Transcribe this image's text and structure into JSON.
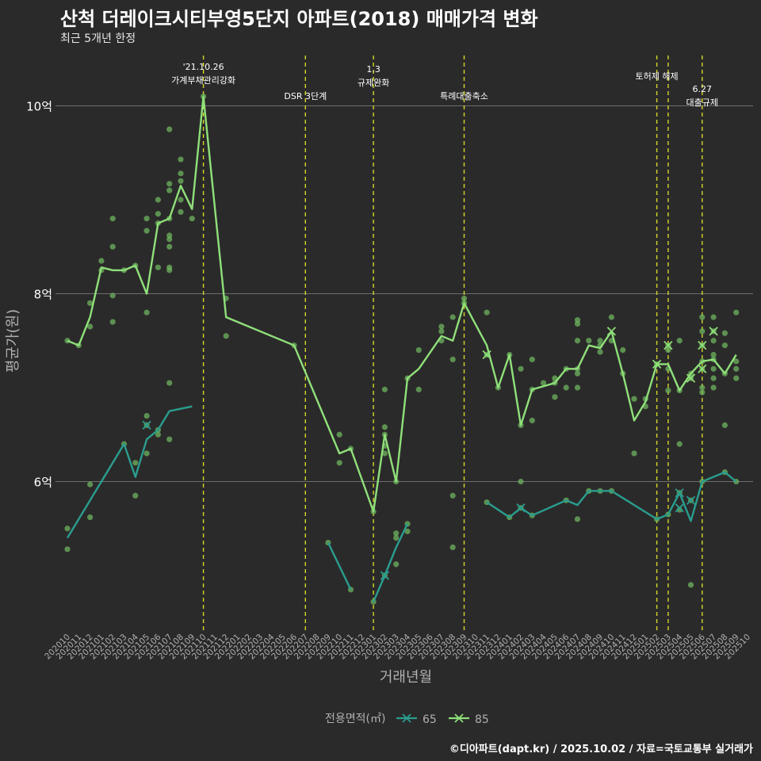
{
  "title": "산척 더레이크시티부영5단지 아파트(2018) 매매가격 변화",
  "subtitle": "최근 5개년 한정",
  "caption": "©디아파트(dapt.kr) / 2025.10.02 / 자료=국토교통부 실거래가",
  "colors": {
    "background": "#2b2a2a",
    "grid": "#6e6e6e",
    "series_65": "#2a9d8f",
    "series_85": "#8fe07a",
    "points": "#6db45f",
    "vline": "#d4d62a",
    "axis_text": "#b0b0b0"
  },
  "chart_data": {
    "type": "line",
    "xlabel": "거래년월",
    "ylabel": "평균가(원)",
    "ylim": [
      4.5,
      10.6
    ],
    "yticks": [
      {
        "v": 6,
        "label": "6억"
      },
      {
        "v": 8,
        "label": "8억"
      },
      {
        "v": 10,
        "label": "10억"
      }
    ],
    "x_labels": [
      "202010",
      "202011",
      "202012",
      "202101",
      "202102",
      "202103",
      "202104",
      "202105",
      "202106",
      "202107",
      "202108",
      "202109",
      "202110",
      "202111",
      "202112",
      "202201",
      "202202",
      "202203",
      "202204",
      "202205",
      "202206",
      "202207",
      "202208",
      "202209",
      "202210",
      "202211",
      "202212",
      "202301",
      "202302",
      "202303",
      "202304",
      "202305",
      "202306",
      "202307",
      "202308",
      "202309",
      "202310",
      "202311",
      "202312",
      "202401",
      "202402",
      "202403",
      "202404",
      "202405",
      "202406",
      "202407",
      "202408",
      "202409",
      "202410",
      "202411",
      "202412",
      "202501",
      "202502",
      "202503",
      "202504",
      "202505",
      "202506",
      "202507",
      "202508",
      "202509",
      "202510"
    ],
    "legend": {
      "title": "전용면적(㎡)",
      "items": [
        "65",
        "85"
      ]
    },
    "events": [
      {
        "x": 12,
        "label": "'21.10.26\n가계부채관리강화"
      },
      {
        "x": 21,
        "label": "DSR 3단계"
      },
      {
        "x": 27,
        "label": "1.3\n규제완화"
      },
      {
        "x": 35,
        "label": "특례대출축소"
      },
      {
        "x": 52,
        "label": "토허제 해제"
      },
      {
        "x": 53,
        "label": ""
      },
      {
        "x": 56,
        "label": "6.27\n대출규제"
      }
    ],
    "series": [
      {
        "name": "65",
        "segments": [
          [
            [
              0,
              5.4
            ],
            [
              5,
              6.4
            ],
            [
              6,
              6.05
            ],
            [
              7,
              6.45
            ],
            [
              8,
              6.55
            ],
            [
              9,
              6.75
            ],
            [
              11,
              6.8
            ]
          ],
          [
            [
              23,
              5.35
            ],
            [
              25,
              4.85
            ]
          ],
          [
            [
              27,
              4.72
            ],
            [
              28,
              5.0
            ],
            [
              29,
              5.3
            ],
            [
              30,
              5.55
            ]
          ],
          [
            [
              37,
              5.78
            ],
            [
              39,
              5.62
            ],
            [
              40,
              5.72
            ],
            [
              41,
              5.64
            ],
            [
              44,
              5.8
            ],
            [
              45,
              5.75
            ],
            [
              46,
              5.9
            ],
            [
              48,
              5.9
            ],
            [
              52,
              5.6
            ],
            [
              53,
              5.65
            ],
            [
              54,
              5.88
            ],
            [
              55,
              5.58
            ],
            [
              56,
              6.0
            ],
            [
              58,
              6.1
            ],
            [
              59,
              6.0
            ]
          ]
        ]
      },
      {
        "name": "85",
        "segments": [
          [
            [
              0,
              7.5
            ],
            [
              1,
              7.45
            ],
            [
              2,
              7.75
            ],
            [
              3,
              8.28
            ],
            [
              4,
              8.25
            ],
            [
              5,
              8.25
            ],
            [
              6,
              8.3
            ],
            [
              7,
              8.0
            ],
            [
              8,
              8.75
            ],
            [
              9,
              8.8
            ],
            [
              10,
              9.15
            ],
            [
              11,
              8.9
            ],
            [
              12,
              10.1
            ],
            [
              14,
              7.75
            ],
            [
              20,
              7.45
            ],
            [
              24,
              6.3
            ],
            [
              25,
              6.35
            ],
            [
              27,
              5.68
            ],
            [
              28,
              6.5
            ],
            [
              29,
              6.0
            ],
            [
              30,
              7.1
            ],
            [
              31,
              7.2
            ],
            [
              33,
              7.55
            ],
            [
              34,
              7.5
            ],
            [
              35,
              7.9
            ],
            [
              37,
              7.45
            ],
            [
              38,
              7.0
            ],
            [
              39,
              7.35
            ],
            [
              40,
              6.6
            ],
            [
              41,
              6.98
            ],
            [
              43,
              7.05
            ],
            [
              44,
              7.2
            ],
            [
              45,
              7.2
            ],
            [
              46,
              7.45
            ],
            [
              47,
              7.42
            ],
            [
              48,
              7.6
            ],
            [
              49,
              7.15
            ],
            [
              50,
              6.65
            ],
            [
              51,
              6.85
            ],
            [
              52,
              7.25
            ],
            [
              53,
              7.25
            ],
            [
              54,
              6.97
            ],
            [
              55,
              7.15
            ],
            [
              56,
              7.28
            ],
            [
              57,
              7.3
            ],
            [
              58,
              7.15
            ],
            [
              59,
              7.35
            ]
          ]
        ]
      }
    ],
    "scatter": [
      [
        0,
        5.5
      ],
      [
        0,
        5.28
      ],
      [
        2,
        5.97
      ],
      [
        2,
        5.62
      ],
      [
        5,
        6.4
      ],
      [
        6,
        6.2
      ],
      [
        6,
        5.85
      ],
      [
        7,
        6.6
      ],
      [
        7,
        6.3
      ],
      [
        8,
        6.5
      ],
      [
        8,
        6.55
      ],
      [
        9,
        7.05
      ],
      [
        9,
        6.45
      ],
      [
        23,
        5.35
      ],
      [
        25,
        4.85
      ],
      [
        27,
        4.72
      ],
      [
        28,
        5.0
      ],
      [
        29,
        5.12
      ],
      [
        29,
        5.4
      ],
      [
        29,
        5.45
      ],
      [
        30,
        5.55
      ],
      [
        30,
        5.47
      ],
      [
        34,
        5.85
      ],
      [
        34,
        5.3
      ],
      [
        37,
        5.78
      ],
      [
        39,
        5.62
      ],
      [
        40,
        5.72
      ],
      [
        41,
        5.64
      ],
      [
        44,
        5.8
      ],
      [
        45,
        5.6
      ],
      [
        46,
        5.9
      ],
      [
        47,
        5.9
      ],
      [
        48,
        5.9
      ],
      [
        52,
        5.6
      ],
      [
        53,
        5.65
      ],
      [
        54,
        5.88
      ],
      [
        54,
        5.7
      ],
      [
        55,
        5.8
      ],
      [
        55,
        4.9
      ],
      [
        56,
        6.0
      ],
      [
        58,
        6.1
      ],
      [
        59,
        6.0
      ],
      [
        0,
        7.5
      ],
      [
        1,
        7.45
      ],
      [
        2,
        7.65
      ],
      [
        2,
        7.9
      ],
      [
        3,
        8.25
      ],
      [
        3,
        8.35
      ],
      [
        4,
        8.8
      ],
      [
        4,
        8.5
      ],
      [
        4,
        7.98
      ],
      [
        4,
        7.7
      ],
      [
        5,
        8.25
      ],
      [
        6,
        8.3
      ],
      [
        7,
        8.8
      ],
      [
        7,
        8.67
      ],
      [
        7,
        7.8
      ],
      [
        7,
        6.7
      ],
      [
        8,
        9.0
      ],
      [
        8,
        8.75
      ],
      [
        8,
        8.85
      ],
      [
        8,
        8.28
      ],
      [
        9,
        8.8
      ],
      [
        9,
        9.17
      ],
      [
        9,
        9.1
      ],
      [
        9,
        8.62
      ],
      [
        9,
        8.58
      ],
      [
        9,
        8.5
      ],
      [
        9,
        8.28
      ],
      [
        9,
        8.25
      ],
      [
        9,
        9.75
      ],
      [
        10,
        9.43
      ],
      [
        10,
        9.28
      ],
      [
        10,
        9.2
      ],
      [
        10,
        9.0
      ],
      [
        10,
        8.87
      ],
      [
        11,
        8.8
      ],
      [
        12,
        10.1
      ],
      [
        14,
        7.95
      ],
      [
        14,
        7.55
      ],
      [
        20,
        7.45
      ],
      [
        24,
        6.5
      ],
      [
        24,
        6.2
      ],
      [
        25,
        6.35
      ],
      [
        27,
        5.68
      ],
      [
        28,
        6.98
      ],
      [
        28,
        6.5
      ],
      [
        28,
        6.58
      ],
      [
        28,
        6.38
      ],
      [
        28,
        6.3
      ],
      [
        29,
        6.0
      ],
      [
        30,
        7.1
      ],
      [
        31,
        6.98
      ],
      [
        31,
        7.4
      ],
      [
        33,
        7.65
      ],
      [
        33,
        7.5
      ],
      [
        33,
        7.6
      ],
      [
        34,
        7.75
      ],
      [
        34,
        7.3
      ],
      [
        35,
        7.9
      ],
      [
        35,
        7.95
      ],
      [
        37,
        7.8
      ],
      [
        37,
        7.35
      ],
      [
        38,
        7.0
      ],
      [
        39,
        7.35
      ],
      [
        40,
        6.6
      ],
      [
        40,
        7.2
      ],
      [
        40,
        6.0
      ],
      [
        41,
        6.98
      ],
      [
        41,
        6.65
      ],
      [
        41,
        7.3
      ],
      [
        42,
        7.05
      ],
      [
        43,
        7.05
      ],
      [
        43,
        6.9
      ],
      [
        43,
        7.1
      ],
      [
        44,
        7.2
      ],
      [
        44,
        7.0
      ],
      [
        45,
        7.2
      ],
      [
        45,
        7.15
      ],
      [
        45,
        7.0
      ],
      [
        45,
        7.72
      ],
      [
        45,
        7.68
      ],
      [
        45,
        7.5
      ],
      [
        46,
        7.5
      ],
      [
        47,
        7.5
      ],
      [
        47,
        7.45
      ],
      [
        47,
        7.38
      ],
      [
        48,
        7.75
      ],
      [
        48,
        7.5
      ],
      [
        49,
        7.4
      ],
      [
        49,
        7.15
      ],
      [
        50,
        6.88
      ],
      [
        50,
        6.3
      ],
      [
        51,
        6.88
      ],
      [
        51,
        6.8
      ],
      [
        52,
        7.25
      ],
      [
        53,
        7.4
      ],
      [
        53,
        7.45
      ],
      [
        53,
        7.2
      ],
      [
        53,
        6.97
      ],
      [
        54,
        7.5
      ],
      [
        54,
        6.97
      ],
      [
        54,
        6.4
      ],
      [
        55,
        7.15
      ],
      [
        55,
        7.1
      ],
      [
        56,
        7.2
      ],
      [
        56,
        7.28
      ],
      [
        56,
        7.45
      ],
      [
        56,
        7.6
      ],
      [
        56,
        7.75
      ],
      [
        56,
        7.0
      ],
      [
        56,
        6.95
      ],
      [
        57,
        7.6
      ],
      [
        57,
        7.75
      ],
      [
        57,
        7.5
      ],
      [
        57,
        7.35
      ],
      [
        57,
        7.3
      ],
      [
        57,
        7.2
      ],
      [
        57,
        7.1
      ],
      [
        57,
        7.0
      ],
      [
        58,
        7.58
      ],
      [
        58,
        7.45
      ],
      [
        58,
        7.15
      ],
      [
        58,
        6.6
      ],
      [
        59,
        7.8
      ],
      [
        59,
        7.28
      ],
      [
        59,
        7.2
      ],
      [
        59,
        7.1
      ]
    ],
    "markers_65": [
      [
        7,
        6.6
      ],
      [
        28,
        5.0
      ],
      [
        40,
        5.72
      ],
      [
        54,
        5.88
      ],
      [
        54,
        5.72
      ],
      [
        55,
        5.8
      ]
    ],
    "markers_85": [
      [
        37,
        7.35
      ],
      [
        48,
        7.6
      ],
      [
        52,
        7.25
      ],
      [
        53,
        7.45
      ],
      [
        55,
        7.1
      ],
      [
        56,
        7.45
      ],
      [
        56,
        7.2
      ],
      [
        57,
        7.6
      ]
    ]
  }
}
